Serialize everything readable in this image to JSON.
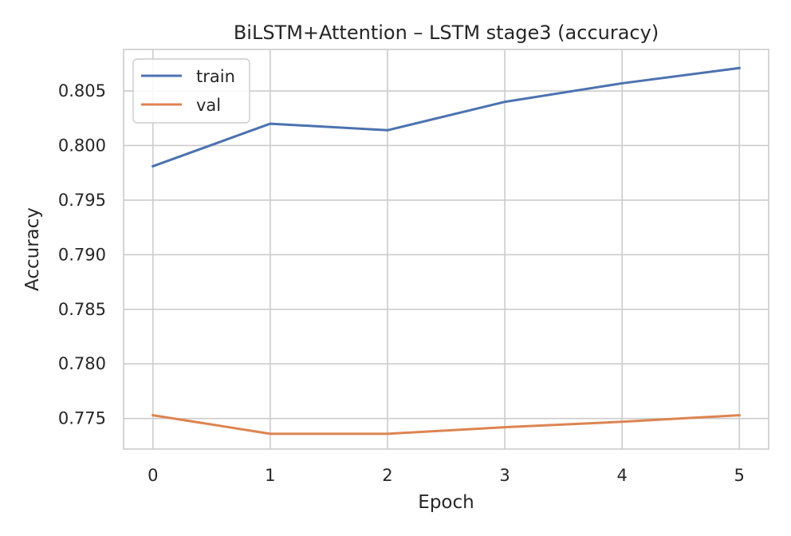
{
  "chart_data": {
    "type": "line",
    "title": "BiLSTM+Attention – LSTM stage3 (accuracy)",
    "xlabel": "Epoch",
    "ylabel": "Accuracy",
    "x": [
      0,
      1,
      2,
      3,
      4,
      5
    ],
    "xticks": [
      "0",
      "1",
      "2",
      "3",
      "4",
      "5"
    ],
    "yticks": [
      "0.775",
      "0.780",
      "0.785",
      "0.790",
      "0.795",
      "0.800",
      "0.805"
    ],
    "xlim": [
      -0.25,
      5.25
    ],
    "ylim": [
      0.7722,
      0.8088
    ],
    "grid": true,
    "legend_position": "top-left",
    "series": [
      {
        "name": "train",
        "color": "#4c72b0",
        "values": [
          0.7981,
          0.802,
          0.8014,
          0.804,
          0.8057,
          0.8071
        ]
      },
      {
        "name": "val",
        "color": "#dd8452",
        "values": [
          0.7753,
          0.7736,
          0.7736,
          0.7742,
          0.7747,
          0.7753
        ]
      }
    ]
  }
}
